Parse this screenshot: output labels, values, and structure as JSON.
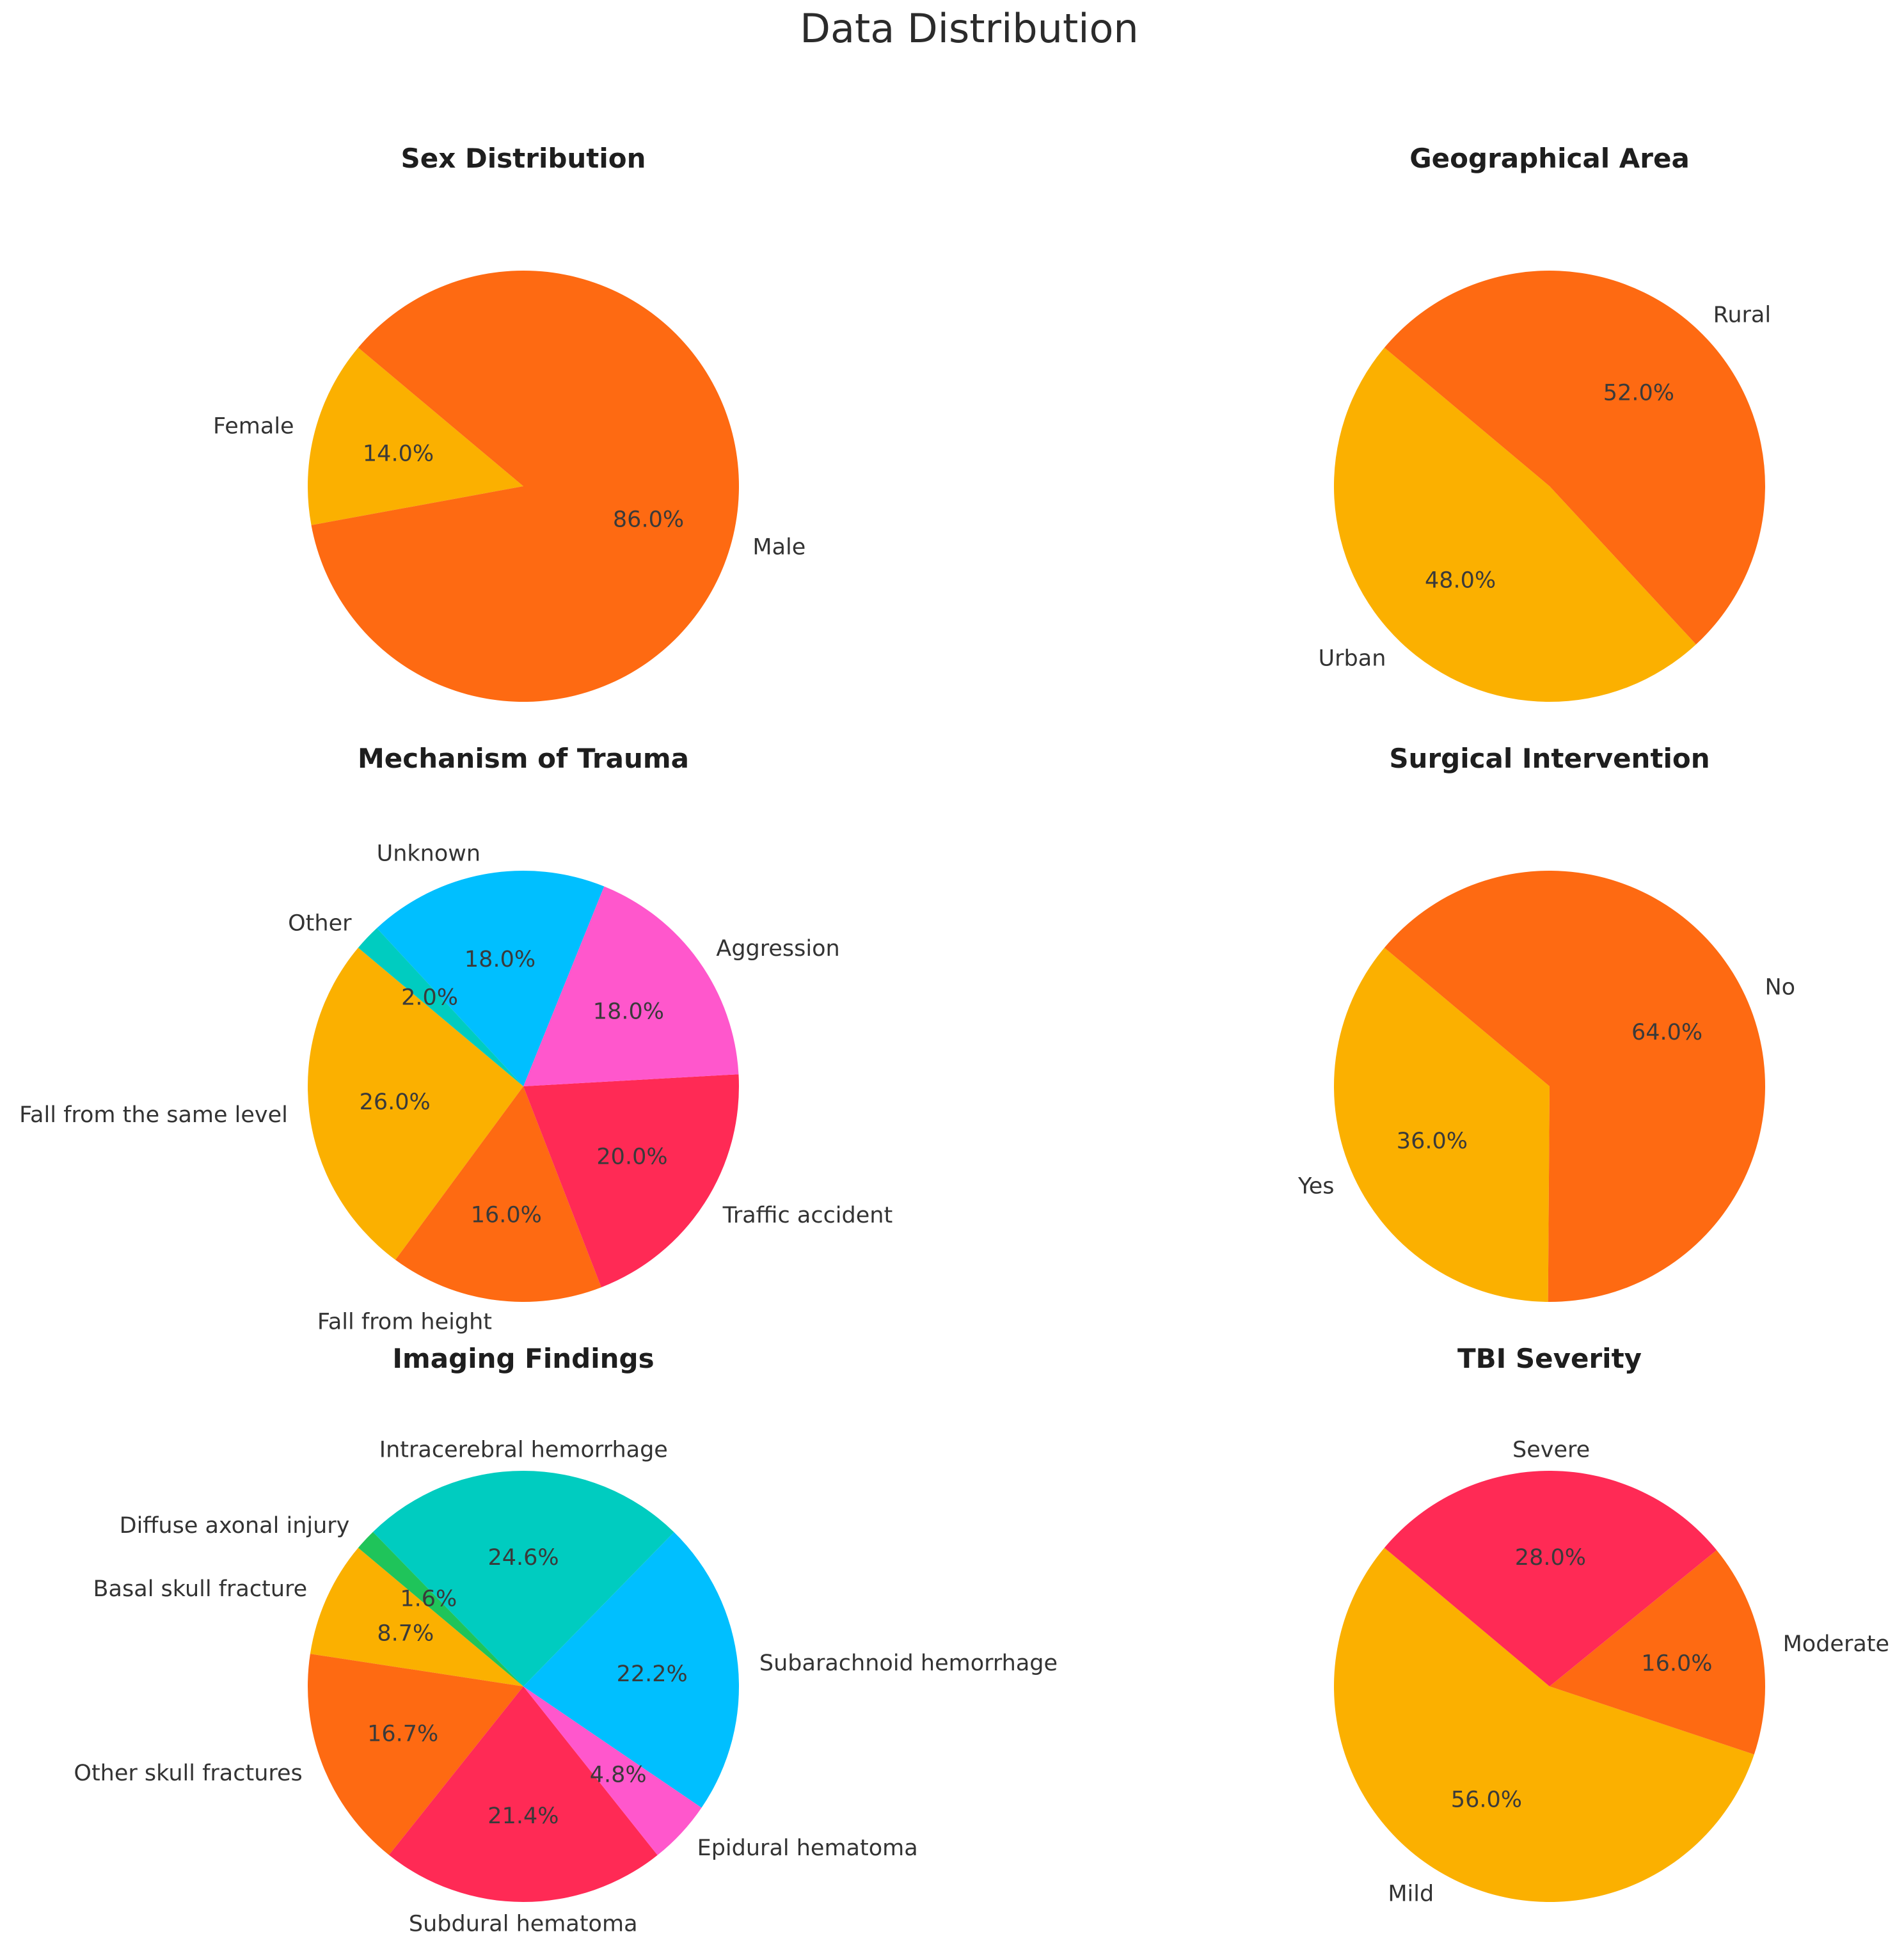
{
  "figure": {
    "title": "Data Distribution"
  },
  "colors": {
    "amber": "#FBB000",
    "orange": "#FE6A12",
    "teal": "#00CCC0",
    "blue": "#00BFFF",
    "pink": "#FF57CC",
    "red": "#FF2A55",
    "green": "#1FC45A"
  },
  "chart_data": [
    {
      "type": "pie",
      "title": "Sex Distribution",
      "start_angle_deg": 140,
      "direction": "counterclockwise",
      "slices": [
        {
          "label": "Female",
          "value": 14.0,
          "pct_text": "14.0%",
          "color": "#FBB000"
        },
        {
          "label": "Male",
          "value": 86.0,
          "pct_text": "86.0%",
          "color": "#FE6A12"
        }
      ]
    },
    {
      "type": "pie",
      "title": "Geographical Area",
      "start_angle_deg": 140,
      "direction": "counterclockwise",
      "slices": [
        {
          "label": "Urban",
          "value": 48.0,
          "pct_text": "48.0%",
          "color": "#FBB000"
        },
        {
          "label": "Rural",
          "value": 52.0,
          "pct_text": "52.0%",
          "color": "#FE6A12"
        }
      ]
    },
    {
      "type": "pie",
      "title": "Mechanism of Trauma",
      "start_angle_deg": 140,
      "direction": "counterclockwise",
      "slices": [
        {
          "label": "Fall from the same level",
          "value": 26.0,
          "pct_text": "26.0%",
          "color": "#FBB000"
        },
        {
          "label": "Fall from height",
          "value": 16.0,
          "pct_text": "16.0%",
          "color": "#FE6A12"
        },
        {
          "label": "Traffic accident",
          "value": 20.0,
          "pct_text": "20.0%",
          "color": "#FF2A55"
        },
        {
          "label": "Aggression",
          "value": 18.0,
          "pct_text": "18.0%",
          "color": "#FF57CC"
        },
        {
          "label": "Unknown",
          "value": 18.0,
          "pct_text": "18.0%",
          "color": "#00BFFF"
        },
        {
          "label": "Other",
          "value": 2.0,
          "pct_text": "2.0%",
          "color": "#00CCC0"
        }
      ]
    },
    {
      "type": "pie",
      "title": "Surgical Intervention",
      "start_angle_deg": 140,
      "direction": "counterclockwise",
      "slices": [
        {
          "label": "Yes",
          "value": 36.0,
          "pct_text": "36.0%",
          "color": "#FBB000"
        },
        {
          "label": "No",
          "value": 64.0,
          "pct_text": "64.0%",
          "color": "#FE6A12"
        }
      ]
    },
    {
      "type": "pie",
      "title": "Imaging Findings",
      "start_angle_deg": 140,
      "direction": "counterclockwise",
      "slices": [
        {
          "label": "Basal skull fracture",
          "value": 8.7,
          "pct_text": "8.7%",
          "color": "#FBB000"
        },
        {
          "label": "Other skull fractures",
          "value": 16.7,
          "pct_text": "16.7%",
          "color": "#FE6A12"
        },
        {
          "label": "Subdural hematoma",
          "value": 21.4,
          "pct_text": "21.4%",
          "color": "#FF2A55"
        },
        {
          "label": "Epidural hematoma",
          "value": 4.8,
          "pct_text": "4.8%",
          "color": "#FF57CC"
        },
        {
          "label": "Subarachnoid hemorrhage",
          "value": 22.2,
          "pct_text": "22.2%",
          "color": "#00BFFF"
        },
        {
          "label": "Intracerebral hemorrhage",
          "value": 24.6,
          "pct_text": "24.6%",
          "color": "#00CCC0"
        },
        {
          "label": "Diffuse axonal injury",
          "value": 1.6,
          "pct_text": "1.6%",
          "color": "#1FC45A"
        }
      ]
    },
    {
      "type": "pie",
      "title": "TBI Severity",
      "start_angle_deg": 140,
      "direction": "counterclockwise",
      "slices": [
        {
          "label": "Mild",
          "value": 56.0,
          "pct_text": "56.0%",
          "color": "#FBB000"
        },
        {
          "label": "Moderate",
          "value": 16.0,
          "pct_text": "16.0%",
          "color": "#FE6A12"
        },
        {
          "label": "Severe",
          "value": 28.0,
          "pct_text": "28.0%",
          "color": "#FF2A55"
        }
      ]
    }
  ]
}
